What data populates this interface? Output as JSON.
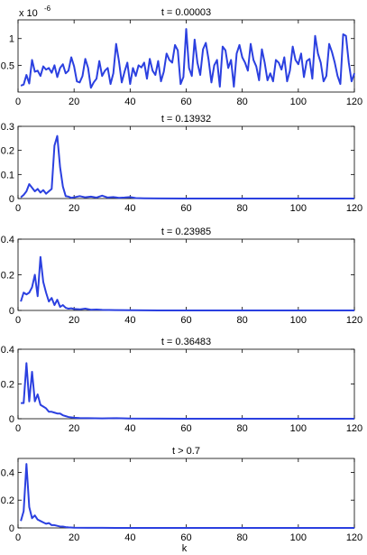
{
  "figure": {
    "xlabel": "k"
  },
  "chart_data": [
    {
      "type": "line",
      "title": "t = 0.00003",
      "exponent_label": "x 10",
      "exponent_power": "-6",
      "xlim": [
        0,
        120
      ],
      "ylim": [
        0,
        1.35
      ],
      "xticks": [
        0,
        20,
        40,
        60,
        80,
        100,
        120
      ],
      "yticks": [
        0.5,
        1
      ],
      "ytick_labels": [
        "0.5",
        "1"
      ],
      "color": "#2b40e0",
      "series": [
        {
          "x": [
            1,
            2,
            3,
            4,
            5,
            6,
            7,
            8,
            9,
            10,
            11,
            12,
            13,
            14,
            15,
            16,
            17,
            18,
            19,
            20,
            21,
            22,
            23,
            24,
            25,
            26,
            27,
            28,
            29,
            30,
            31,
            32,
            33,
            34,
            35,
            36,
            37,
            38,
            39,
            40,
            41,
            42,
            43,
            44,
            45,
            46,
            47,
            48,
            49,
            50,
            51,
            52,
            53,
            54,
            55,
            56,
            57,
            58,
            59,
            60,
            61,
            62,
            63,
            64,
            65,
            66,
            67,
            68,
            69,
            70,
            71,
            72,
            73,
            74,
            75,
            76,
            77,
            78,
            79,
            80,
            81,
            82,
            83,
            84,
            85,
            86,
            87,
            88,
            89,
            90,
            91,
            92,
            93,
            94,
            95,
            96,
            97,
            98,
            99,
            100,
            101,
            102,
            103,
            104,
            105,
            106,
            107,
            108,
            109,
            110,
            111,
            112,
            113,
            114,
            115,
            116,
            117,
            118,
            119,
            120
          ],
          "y": [
            0.12,
            0.14,
            0.32,
            0.16,
            0.6,
            0.38,
            0.4,
            0.3,
            0.48,
            0.42,
            0.45,
            0.36,
            0.5,
            0.28,
            0.45,
            0.52,
            0.35,
            0.4,
            0.65,
            0.48,
            0.2,
            0.18,
            0.3,
            0.62,
            0.45,
            0.08,
            0.18,
            0.25,
            0.58,
            0.3,
            0.4,
            0.45,
            0.15,
            0.35,
            0.9,
            0.58,
            0.18,
            0.38,
            0.55,
            0.15,
            0.45,
            0.3,
            0.5,
            0.46,
            0.55,
            0.25,
            0.62,
            0.4,
            0.32,
            0.58,
            0.2,
            0.38,
            0.72,
            0.6,
            0.55,
            0.88,
            0.78,
            0.15,
            0.28,
            1.18,
            0.45,
            0.3,
            0.98,
            0.55,
            0.32,
            0.8,
            0.92,
            0.6,
            0.18,
            0.5,
            0.6,
            0.1,
            0.85,
            0.78,
            0.45,
            0.6,
            0.1,
            0.72,
            0.88,
            0.65,
            0.55,
            0.4,
            0.9,
            0.6,
            0.48,
            0.22,
            0.8,
            0.55,
            0.22,
            0.35,
            0.2,
            0.6,
            0.55,
            0.42,
            0.65,
            0.2,
            0.4,
            0.85,
            0.6,
            0.52,
            0.72,
            0.28,
            0.58,
            0.62,
            0.25,
            1.05,
            0.72,
            0.55,
            0.2,
            0.3,
            0.9,
            0.75,
            0.55,
            0.3,
            0.15,
            1.08,
            1.05,
            0.55,
            0.2,
            0.35
          ]
        }
      ]
    },
    {
      "type": "line",
      "title": "t = 0.13932",
      "xlim": [
        0,
        120
      ],
      "ylim": [
        0,
        0.3
      ],
      "xticks": [
        0,
        20,
        40,
        60,
        80,
        100,
        120
      ],
      "yticks": [
        0,
        0.1,
        0.2,
        0.3
      ],
      "ytick_labels": [
        "0",
        "0.1",
        "0.2",
        "0.3"
      ],
      "color": "#2b40e0",
      "series": [
        {
          "x": [
            1,
            2,
            3,
            4,
            5,
            6,
            7,
            8,
            9,
            10,
            11,
            12,
            13,
            14,
            15,
            16,
            17,
            18,
            19,
            20,
            22,
            24,
            26,
            28,
            30,
            32,
            34,
            36,
            38,
            40,
            42,
            45,
            50,
            60,
            80,
            100,
            120
          ],
          "y": [
            0.005,
            0.015,
            0.03,
            0.06,
            0.045,
            0.03,
            0.04,
            0.025,
            0.035,
            0.02,
            0.03,
            0.04,
            0.22,
            0.26,
            0.13,
            0.05,
            0.01,
            0.008,
            0.003,
            0.005,
            0.01,
            0.005,
            0.008,
            0.004,
            0.012,
            0.004,
            0.006,
            0.003,
            0.004,
            0.006,
            0.002,
            0.001,
            0.0005,
            0,
            0,
            0,
            0
          ]
        }
      ]
    },
    {
      "type": "line",
      "title": "t = 0.23985",
      "xlim": [
        0,
        120
      ],
      "ylim": [
        0,
        0.4
      ],
      "xticks": [
        0,
        20,
        40,
        60,
        80,
        100,
        120
      ],
      "yticks": [
        0,
        0.2,
        0.4
      ],
      "ytick_labels": [
        "0",
        "0.2",
        "0.4"
      ],
      "color": "#2b40e0",
      "series": [
        {
          "x": [
            1,
            2,
            3,
            4,
            5,
            6,
            7,
            8,
            9,
            10,
            11,
            12,
            13,
            14,
            15,
            16,
            17,
            18,
            19,
            20,
            22,
            24,
            26,
            28,
            30,
            35,
            40,
            50,
            60,
            80,
            100,
            120
          ],
          "y": [
            0.05,
            0.1,
            0.09,
            0.1,
            0.13,
            0.2,
            0.08,
            0.3,
            0.16,
            0.1,
            0.05,
            0.07,
            0.03,
            0.06,
            0.02,
            0.03,
            0.015,
            0.01,
            0.012,
            0.008,
            0.006,
            0.01,
            0.004,
            0.005,
            0.003,
            0.002,
            0.001,
            0,
            0,
            0,
            0,
            0
          ]
        }
      ]
    },
    {
      "type": "line",
      "title": "t = 0.36483",
      "xlim": [
        0,
        120
      ],
      "ylim": [
        0,
        0.4
      ],
      "xticks": [
        0,
        20,
        40,
        60,
        80,
        100,
        120
      ],
      "yticks": [
        0,
        0.2,
        0.4
      ],
      "ytick_labels": [
        "0",
        "0.2",
        "0.4"
      ],
      "color": "#2b40e0",
      "series": [
        {
          "x": [
            1,
            2,
            3,
            4,
            5,
            6,
            7,
            8,
            9,
            10,
            11,
            12,
            13,
            14,
            15,
            16,
            17,
            18,
            19,
            20,
            22,
            25,
            30,
            35,
            40,
            50,
            60,
            80,
            100,
            120
          ],
          "y": [
            0.09,
            0.09,
            0.32,
            0.1,
            0.27,
            0.1,
            0.14,
            0.08,
            0.07,
            0.06,
            0.04,
            0.04,
            0.035,
            0.03,
            0.03,
            0.02,
            0.015,
            0.01,
            0.008,
            0.006,
            0.004,
            0.003,
            0.002,
            0.003,
            0.001,
            0.0005,
            0,
            0,
            0,
            0
          ]
        }
      ]
    },
    {
      "type": "line",
      "title": "t > 0.7",
      "xlim": [
        0,
        120
      ],
      "ylim": [
        0,
        0.5
      ],
      "xticks": [
        0,
        20,
        40,
        60,
        80,
        100,
        120
      ],
      "yticks": [
        0,
        0.2,
        0.4
      ],
      "ytick_labels": [
        "0",
        "0.2",
        "0.4"
      ],
      "color": "#2b40e0",
      "series": [
        {
          "x": [
            1,
            2,
            3,
            4,
            5,
            6,
            7,
            8,
            9,
            10,
            11,
            12,
            13,
            14,
            15,
            16,
            17,
            18,
            20,
            25,
            30,
            40,
            60,
            80,
            100,
            120
          ],
          "y": [
            0.05,
            0.12,
            0.46,
            0.15,
            0.07,
            0.09,
            0.06,
            0.05,
            0.04,
            0.03,
            0.035,
            0.02,
            0.02,
            0.015,
            0.01,
            0.01,
            0.006,
            0.004,
            0.002,
            0.001,
            0.0005,
            0,
            0,
            0,
            0,
            0
          ]
        }
      ]
    }
  ]
}
